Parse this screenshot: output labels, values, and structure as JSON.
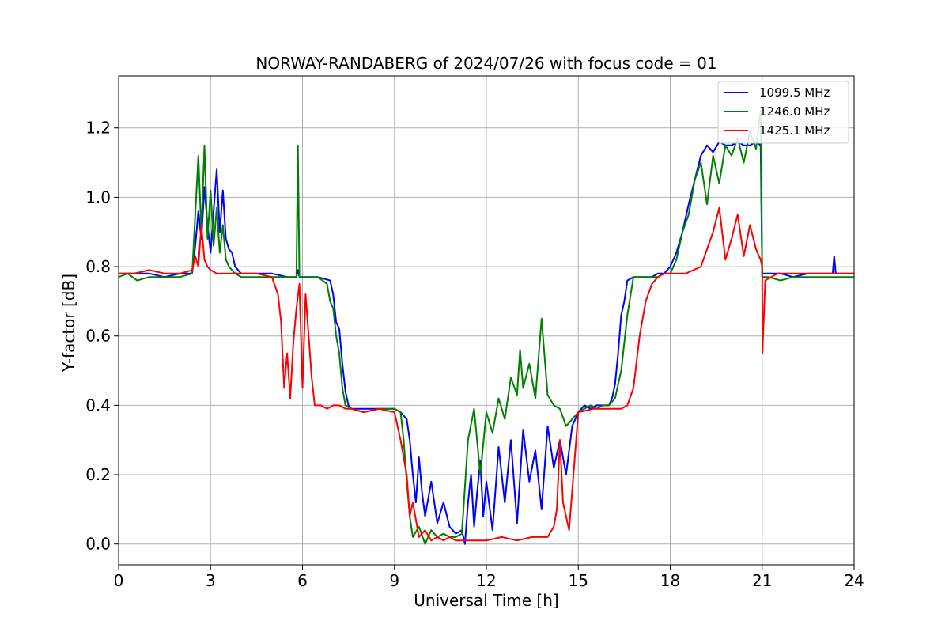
{
  "chart_data": {
    "type": "line",
    "title": "NORWAY-RANDABERG of 2024/07/26 with focus code = 01",
    "xlabel": "Universal Time [h]",
    "ylabel": "Y-factor [dB]",
    "xlim": [
      0,
      24
    ],
    "ylim": [
      -0.06,
      1.35
    ],
    "xticks": [
      0,
      3,
      6,
      9,
      12,
      15,
      18,
      21,
      24
    ],
    "xtick_labels": [
      "0",
      "3",
      "6",
      "9",
      "12",
      "15",
      "18",
      "21",
      "24"
    ],
    "yticks": [
      0.0,
      0.2,
      0.4,
      0.6,
      0.8,
      1.0,
      1.2
    ],
    "ytick_labels": [
      "0.0",
      "0.2",
      "0.4",
      "0.6",
      "0.8",
      "1.0",
      "1.2"
    ],
    "grid": true,
    "legend_position": "top-right",
    "series": [
      {
        "name": "1099.5 MHz",
        "color": "#0000ff",
        "x": [
          0,
          0.5,
          1.0,
          1.5,
          2.0,
          2.4,
          2.5,
          2.6,
          2.7,
          2.8,
          2.9,
          3.0,
          3.1,
          3.2,
          3.3,
          3.4,
          3.5,
          3.6,
          3.7,
          3.8,
          4.0,
          4.5,
          5.0,
          5.5,
          5.8,
          5.85,
          5.9,
          6.0,
          6.5,
          6.9,
          7.0,
          7.1,
          7.2,
          7.3,
          7.4,
          7.5,
          7.6,
          8.0,
          8.5,
          9.0,
          9.2,
          9.4,
          9.5,
          9.6,
          9.7,
          9.8,
          9.9,
          10.0,
          10.2,
          10.4,
          10.6,
          10.8,
          11.0,
          11.2,
          11.3,
          11.4,
          11.5,
          11.6,
          11.7,
          11.8,
          11.9,
          12.0,
          12.2,
          12.4,
          12.6,
          12.8,
          13.0,
          13.2,
          13.4,
          13.6,
          13.8,
          14.0,
          14.2,
          14.4,
          14.6,
          14.8,
          15.0,
          15.2,
          15.4,
          15.6,
          15.8,
          16.0,
          16.1,
          16.2,
          16.3,
          16.4,
          16.5,
          16.6,
          16.8,
          17.0,
          17.2,
          17.4,
          17.6,
          17.8,
          18.0,
          18.2,
          18.4,
          18.6,
          18.8,
          19.0,
          19.2,
          19.4,
          19.6,
          19.8,
          20.0,
          20.2,
          20.4,
          20.6,
          20.8,
          20.95,
          21.0,
          21.2,
          21.6,
          22.0,
          22.5,
          23.0,
          23.3,
          23.35,
          23.4,
          23.5,
          24.0
        ],
        "values": [
          0.78,
          0.78,
          0.78,
          0.77,
          0.78,
          0.78,
          0.86,
          0.96,
          0.88,
          1.03,
          0.92,
          0.84,
          0.96,
          1.08,
          0.9,
          1.02,
          0.88,
          0.85,
          0.84,
          0.8,
          0.78,
          0.78,
          0.78,
          0.77,
          0.77,
          0.79,
          0.77,
          0.77,
          0.77,
          0.76,
          0.72,
          0.64,
          0.62,
          0.52,
          0.44,
          0.4,
          0.39,
          0.39,
          0.39,
          0.39,
          0.38,
          0.36,
          0.3,
          0.2,
          0.12,
          0.25,
          0.15,
          0.08,
          0.18,
          0.06,
          0.12,
          0.05,
          0.03,
          0.04,
          0.0,
          0.12,
          0.2,
          0.05,
          0.15,
          0.24,
          0.08,
          0.18,
          0.04,
          0.28,
          0.12,
          0.3,
          0.06,
          0.33,
          0.18,
          0.27,
          0.1,
          0.34,
          0.22,
          0.3,
          0.2,
          0.34,
          0.38,
          0.4,
          0.39,
          0.4,
          0.4,
          0.4,
          0.42,
          0.46,
          0.55,
          0.66,
          0.7,
          0.76,
          0.77,
          0.77,
          0.77,
          0.77,
          0.78,
          0.78,
          0.8,
          0.84,
          0.9,
          0.98,
          1.05,
          1.12,
          1.15,
          1.13,
          1.16,
          1.15,
          1.15,
          1.16,
          1.15,
          1.15,
          1.16,
          1.15,
          0.78,
          0.78,
          0.78,
          0.77,
          0.78,
          0.78,
          0.78,
          0.83,
          0.78,
          0.78,
          0.78
        ]
      },
      {
        "name": "1246.0 MHz",
        "color": "#008000",
        "x": [
          0,
          0.3,
          0.6,
          1.0,
          1.5,
          2.0,
          2.4,
          2.5,
          2.6,
          2.7,
          2.8,
          2.9,
          3.0,
          3.1,
          3.2,
          3.3,
          3.4,
          3.5,
          3.6,
          3.7,
          3.8,
          4.0,
          4.5,
          5.0,
          5.5,
          5.8,
          5.85,
          5.9,
          6.0,
          6.5,
          6.8,
          6.9,
          7.0,
          7.1,
          7.2,
          7.3,
          7.4,
          7.6,
          8.0,
          8.5,
          9.0,
          9.2,
          9.3,
          9.4,
          9.5,
          9.6,
          9.8,
          10.0,
          10.2,
          10.4,
          10.6,
          10.8,
          11.0,
          11.2,
          11.4,
          11.6,
          11.8,
          12.0,
          12.2,
          12.4,
          12.6,
          12.8,
          13.0,
          13.1,
          13.2,
          13.4,
          13.6,
          13.8,
          14.0,
          14.2,
          14.4,
          14.6,
          14.8,
          15.0,
          15.2,
          15.4,
          15.6,
          15.8,
          16.0,
          16.2,
          16.4,
          16.6,
          16.8,
          17.0,
          17.2,
          17.4,
          17.6,
          17.8,
          18.0,
          18.2,
          18.4,
          18.6,
          18.8,
          19.0,
          19.2,
          19.4,
          19.6,
          19.8,
          20.0,
          20.2,
          20.4,
          20.6,
          20.8,
          20.95,
          21.0,
          21.2,
          21.6,
          22.0,
          22.5,
          23.0,
          23.5,
          24.0
        ],
        "values": [
          0.77,
          0.78,
          0.76,
          0.77,
          0.77,
          0.77,
          0.78,
          0.95,
          1.12,
          0.9,
          1.15,
          0.88,
          1.02,
          0.86,
          0.97,
          0.84,
          0.92,
          0.82,
          0.8,
          0.79,
          0.78,
          0.77,
          0.77,
          0.77,
          0.77,
          0.77,
          1.15,
          0.77,
          0.77,
          0.77,
          0.75,
          0.7,
          0.68,
          0.6,
          0.55,
          0.45,
          0.4,
          0.39,
          0.38,
          0.39,
          0.39,
          0.38,
          0.3,
          0.18,
          0.08,
          0.02,
          0.05,
          0.0,
          0.04,
          0.02,
          0.03,
          0.02,
          0.02,
          0.03,
          0.3,
          0.39,
          0.2,
          0.38,
          0.32,
          0.42,
          0.36,
          0.48,
          0.43,
          0.56,
          0.45,
          0.52,
          0.42,
          0.65,
          0.43,
          0.4,
          0.39,
          0.34,
          0.36,
          0.38,
          0.39,
          0.4,
          0.39,
          0.4,
          0.4,
          0.42,
          0.5,
          0.66,
          0.77,
          0.77,
          0.77,
          0.77,
          0.77,
          0.78,
          0.78,
          0.82,
          0.9,
          0.95,
          1.05,
          1.1,
          0.98,
          1.12,
          1.04,
          1.15,
          1.12,
          1.17,
          1.1,
          1.19,
          1.14,
          1.25,
          0.77,
          0.77,
          0.76,
          0.77,
          0.77,
          0.77,
          0.77,
          0.77
        ]
      },
      {
        "name": "1425.1 MHz",
        "color": "#ff0000",
        "x": [
          0,
          0.5,
          1.0,
          1.5,
          2.0,
          2.4,
          2.5,
          2.6,
          2.7,
          2.8,
          2.9,
          3.0,
          3.2,
          3.4,
          3.6,
          4.0,
          4.5,
          5.0,
          5.2,
          5.3,
          5.4,
          5.5,
          5.6,
          5.7,
          5.8,
          5.9,
          6.0,
          6.1,
          6.2,
          6.3,
          6.4,
          6.6,
          6.8,
          7.0,
          7.2,
          7.4,
          7.6,
          8.0,
          8.5,
          9.0,
          9.2,
          9.4,
          9.5,
          9.6,
          9.8,
          10.0,
          10.2,
          10.4,
          10.6,
          10.8,
          11.0,
          11.5,
          12.0,
          12.5,
          13.0,
          13.5,
          14.0,
          14.2,
          14.3,
          14.4,
          14.5,
          14.6,
          14.7,
          15.0,
          15.5,
          16.0,
          16.4,
          16.6,
          16.8,
          17.0,
          17.2,
          17.4,
          17.6,
          17.8,
          18.0,
          18.5,
          19.0,
          19.2,
          19.4,
          19.6,
          19.8,
          20.0,
          20.2,
          20.4,
          20.6,
          20.8,
          20.95,
          21.0,
          21.01,
          21.1,
          21.5,
          22.0,
          22.5,
          23.0,
          23.5,
          24.0
        ],
        "values": [
          0.78,
          0.78,
          0.79,
          0.78,
          0.78,
          0.79,
          0.83,
          0.8,
          0.92,
          0.82,
          0.8,
          0.79,
          0.78,
          0.78,
          0.78,
          0.78,
          0.78,
          0.77,
          0.72,
          0.64,
          0.45,
          0.55,
          0.42,
          0.58,
          0.68,
          0.75,
          0.45,
          0.72,
          0.6,
          0.48,
          0.4,
          0.4,
          0.39,
          0.4,
          0.4,
          0.39,
          0.39,
          0.38,
          0.39,
          0.38,
          0.3,
          0.2,
          0.08,
          0.12,
          0.02,
          0.04,
          0.01,
          0.02,
          0.01,
          0.02,
          0.01,
          0.01,
          0.01,
          0.02,
          0.01,
          0.02,
          0.02,
          0.05,
          0.1,
          0.3,
          0.12,
          0.08,
          0.04,
          0.38,
          0.39,
          0.39,
          0.39,
          0.4,
          0.45,
          0.6,
          0.7,
          0.75,
          0.77,
          0.78,
          0.78,
          0.78,
          0.8,
          0.85,
          0.9,
          0.97,
          0.82,
          0.88,
          0.95,
          0.83,
          0.92,
          0.85,
          0.82,
          0.8,
          0.55,
          0.76,
          0.78,
          0.78,
          0.78,
          0.78,
          0.78,
          0.78
        ]
      }
    ]
  }
}
